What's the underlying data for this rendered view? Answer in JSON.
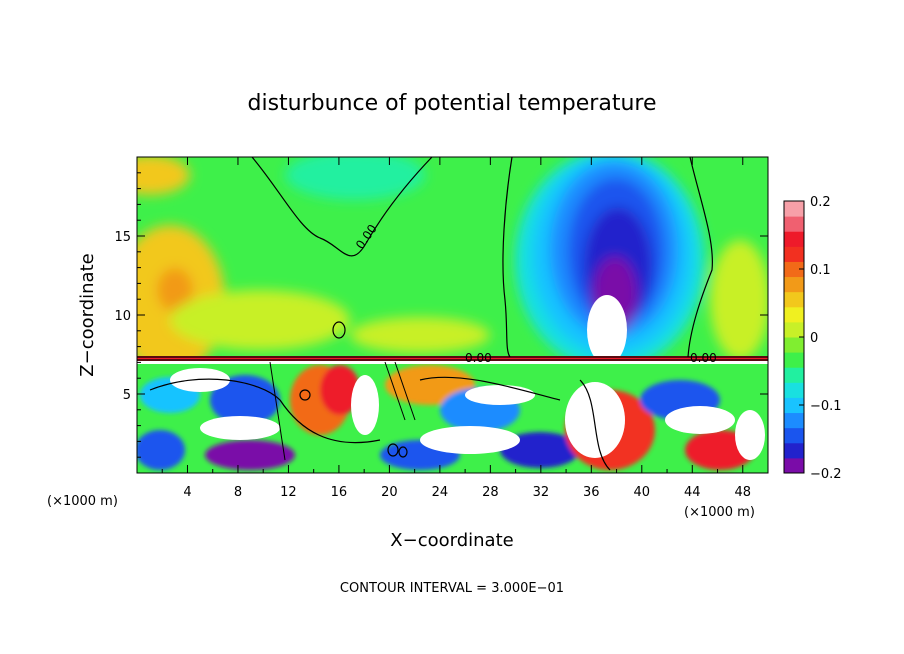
{
  "chart_data": {
    "type": "heatmap",
    "title": "disturbunce of potential temperature",
    "xlabel": "X−coordinate",
    "ylabel": "Z−coordinate",
    "x_unit_left": "(×1000 m)",
    "x_unit_right": "(×1000 m)",
    "x_ticks": [
      "4",
      "8",
      "12",
      "16",
      "20",
      "24",
      "28",
      "32",
      "36",
      "40",
      "44",
      "48"
    ],
    "y_ticks": [
      "5",
      "10",
      "15"
    ],
    "xlim": [
      0,
      50
    ],
    "ylim": [
      0,
      20
    ],
    "colorbar": {
      "ticks": [
        "0.2",
        "0.1",
        "0",
        "−0.1",
        "−0.2"
      ],
      "range": [
        -0.2,
        0.2
      ],
      "colors": [
        "#7a0ca8",
        "#2222cc",
        "#1a55ee",
        "#1c8cff",
        "#19c3ff",
        "#19e0e0",
        "#21f0a0",
        "#3ef04a",
        "#80ee30",
        "#c8f028",
        "#f0f020",
        "#f2c81c",
        "#f29a18",
        "#f26a18",
        "#f23020",
        "#ee1a2a",
        "#f06070",
        "#f7a0a8"
      ]
    },
    "contour_labels": [
      "0.00",
      "0.00",
      "0.00"
    ],
    "footer": "CONTOUR INTERVAL = 3.000E−01"
  }
}
